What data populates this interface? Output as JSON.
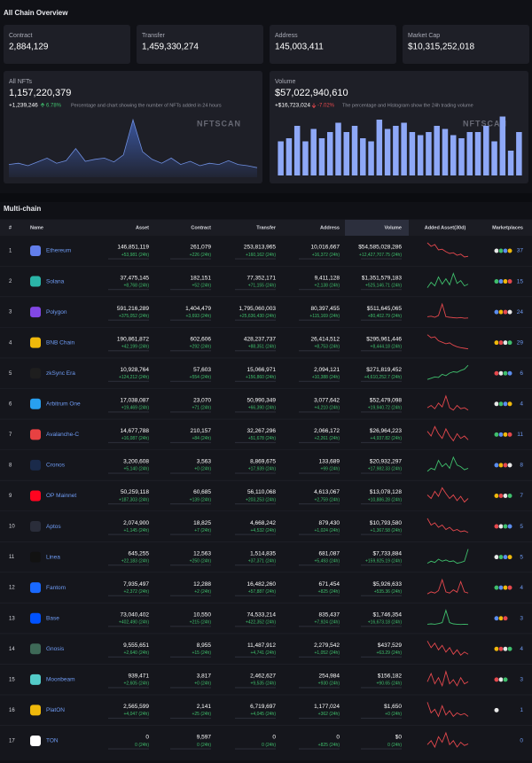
{
  "overview": {
    "title": "All Chain Overview",
    "stats": [
      {
        "label": "Contract",
        "value": "2,884,129"
      },
      {
        "label": "Transfer",
        "value": "1,459,330,274"
      },
      {
        "label": "Address",
        "value": "145,003,411"
      },
      {
        "label": "Market Cap",
        "value": "$10,315,252,018"
      }
    ],
    "nfts": {
      "label": "All NFTs",
      "value": "1,157,220,379",
      "change": "+1,239,246",
      "pct": "6.78%",
      "note": "Percentage and chart showing the number of NFTs added in 24 hours",
      "watermark": "NFTSCAN",
      "ylim": [
        0,
        100
      ],
      "color": "#3d5ba9",
      "series": [
        20,
        22,
        18,
        24,
        30,
        22,
        26,
        45,
        25,
        28,
        30,
        24,
        35,
        90,
        40,
        28,
        22,
        30,
        20,
        25,
        18,
        22,
        20,
        26,
        20,
        18,
        15
      ]
    },
    "volume": {
      "label": "Volume",
      "value": "$57,022,940,610",
      "change": "+$16,723,024",
      "pct": "-7.02%",
      "note": "The percentage and Histogram show the 24h trading volume",
      "watermark": "NFTSCAN",
      "ylim": [
        0,
        100
      ],
      "color": "#8ea8f7",
      "bars": [
        55,
        60,
        80,
        55,
        75,
        60,
        70,
        85,
        70,
        80,
        60,
        55,
        90,
        75,
        80,
        85,
        70,
        65,
        70,
        80,
        75,
        65,
        60,
        70,
        70,
        80,
        55,
        95,
        40,
        70
      ]
    }
  },
  "table": {
    "title": "Multi-chain",
    "headers": [
      "#",
      "Name",
      "Asset",
      "Contract",
      "Transfer",
      "Address",
      "Volume",
      "Added Asset(30d)",
      "Marketplaces"
    ],
    "rows": [
      {
        "rank": "1",
        "name": "Ethereum",
        "icon_color": "#627eea",
        "asset": "146,851,119",
        "asset_change": "+53,981 (24h)",
        "contract": "261,079",
        "contract_change": "+226 (24h)",
        "transfer": "253,813,965",
        "transfer_change": "+160,162 (24h)",
        "address": "10,016,667",
        "address_change": "+16,372 (24h)",
        "volume": "$54,585,028,286",
        "volume_change": "+12,427,707.75 (24h)",
        "spark_color": "#e5484d",
        "spark": [
          80,
          70,
          75,
          60,
          62,
          55,
          50,
          52,
          45,
          48,
          40,
          42
        ],
        "marketplaces": 37
      },
      {
        "rank": "2",
        "name": "Solana",
        "icon_color": "#2bb5a8",
        "asset": "37,475,145",
        "asset_change": "+8,768 (24h)",
        "contract": "182,151",
        "contract_change": "+52 (24h)",
        "transfer": "77,352,171",
        "transfer_change": "+71,155 (24h)",
        "address": "9,411,128",
        "address_change": "+2,138 (24h)",
        "volume": "$1,351,579,183",
        "volume_change": "+525,146.71 (24h)",
        "spark_color": "#3fbf6c",
        "spark": [
          30,
          45,
          35,
          60,
          40,
          55,
          38,
          70,
          42,
          50,
          35,
          40
        ],
        "marketplaces": 15
      },
      {
        "rank": "3",
        "name": "Polygon",
        "icon_color": "#8247e5",
        "asset": "591,216,289",
        "asset_change": "+375,052 (24h)",
        "contract": "1,404,479",
        "contract_change": "+3,693 (24h)",
        "transfer": "1,795,060,003",
        "transfer_change": "+25,636,430 (24h)",
        "address": "80,397,455",
        "address_change": "+115,169 (24h)",
        "volume": "$511,645,065",
        "volume_change": "+80,402.79 (24h)",
        "spark_color": "#e5484d",
        "spark": [
          40,
          42,
          38,
          45,
          90,
          40,
          38,
          36,
          35,
          37,
          34,
          35
        ],
        "marketplaces": 24
      },
      {
        "rank": "4",
        "name": "BNB Chain",
        "icon_color": "#f0b90b",
        "asset": "190,861,872",
        "asset_change": "+42,199 (24h)",
        "contract": "602,606",
        "contract_change": "+292 (24h)",
        "transfer": "428,237,737",
        "transfer_change": "+88,351 (24h)",
        "address": "26,414,512",
        "address_change": "+8,753 (24h)",
        "volume": "$295,961,446",
        "volume_change": "+8,444.18 (24h)",
        "spark_color": "#e5484d",
        "spark": [
          85,
          75,
          78,
          65,
          60,
          55,
          58,
          50,
          45,
          42,
          40,
          38
        ],
        "marketplaces": 29
      },
      {
        "rank": "5",
        "name": "zkSync Era",
        "icon_color": "#1e1e1e",
        "asset": "10,928,764",
        "asset_change": "+124,212 (24h)",
        "contract": "57,603",
        "contract_change": "+554 (24h)",
        "transfer": "15,066,971",
        "transfer_change": "+156,860 (24h)",
        "address": "2,094,121",
        "address_change": "+10,388 (24h)",
        "volume": "$271,819,452",
        "volume_change": "+4,610,252.7 (24h)",
        "spark_color": "#3fbf6c",
        "spark": [
          30,
          35,
          40,
          38,
          50,
          45,
          55,
          60,
          58,
          65,
          70,
          85
        ],
        "marketplaces": 6
      },
      {
        "rank": "6",
        "name": "Arbitrum One",
        "icon_color": "#28a0f0",
        "asset": "17,038,087",
        "asset_change": "+19,469 (24h)",
        "contract": "23,070",
        "contract_change": "+71 (24h)",
        "transfer": "50,990,349",
        "transfer_change": "+66,390 (24h)",
        "address": "3,077,642",
        "address_change": "+4,210 (24h)",
        "volume": "$52,479,098",
        "volume_change": "+19,940.72 (24h)",
        "spark_color": "#e5484d",
        "spark": [
          50,
          55,
          48,
          60,
          52,
          75,
          50,
          45,
          55,
          48,
          50,
          45
        ],
        "marketplaces": 4
      },
      {
        "rank": "7",
        "name": "Avalanche-C",
        "icon_color": "#e84142",
        "asset": "14,677,788",
        "asset_change": "+16,087 (24h)",
        "contract": "210,157",
        "contract_change": "+84 (24h)",
        "transfer": "32,267,296",
        "transfer_change": "+51,678 (24h)",
        "address": "2,066,172",
        "address_change": "+2,261 (24h)",
        "volume": "$26,964,223",
        "volume_change": "+4,937.82 (24h)",
        "spark_color": "#e5484d",
        "spark": [
          60,
          50,
          70,
          55,
          45,
          65,
          50,
          40,
          55,
          45,
          50,
          42
        ],
        "marketplaces": 11
      },
      {
        "rank": "8",
        "name": "Cronos",
        "icon_color": "#1a2a4a",
        "asset": "3,200,608",
        "asset_change": "+5,140 (24h)",
        "contract": "3,563",
        "contract_change": "+0 (24h)",
        "transfer": "8,869,675",
        "transfer_change": "+17,939 (24h)",
        "address": "133,689",
        "address_change": "+99 (24h)",
        "volume": "$20,932,297",
        "volume_change": "+17,982.33 (24h)",
        "spark_color": "#3fbf6c",
        "spark": [
          35,
          45,
          40,
          70,
          50,
          60,
          45,
          80,
          55,
          50,
          40,
          45
        ],
        "marketplaces": 8
      },
      {
        "rank": "9",
        "name": "OP Mainnet",
        "icon_color": "#ff0420",
        "asset": "50,259,118",
        "asset_change": "+187,303 (24h)",
        "contract": "60,685",
        "contract_change": "+139 (24h)",
        "transfer": "56,110,068",
        "transfer_change": "+203,253 (24h)",
        "address": "4,613,067",
        "address_change": "+2,759 (24h)",
        "volume": "$13,078,128",
        "volume_change": "+10,886.28 (24h)",
        "spark_color": "#e5484d",
        "spark": [
          50,
          45,
          55,
          48,
          60,
          52,
          45,
          50,
          42,
          48,
          40,
          45
        ],
        "marketplaces": 7
      },
      {
        "rank": "10",
        "name": "Aptos",
        "icon_color": "#2a2d3a",
        "asset": "2,074,900",
        "asset_change": "+1,145 (24h)",
        "contract": "18,825",
        "contract_change": "+7 (24h)",
        "transfer": "4,668,242",
        "transfer_change": "+4,532 (24h)",
        "address": "879,430",
        "address_change": "+1,024 (24h)",
        "volume": "$10,793,580",
        "volume_change": "+1,367.58 (24h)",
        "spark_color": "#e5484d",
        "spark": [
          70,
          55,
          60,
          50,
          55,
          45,
          50,
          42,
          45,
          40,
          42,
          38
        ],
        "marketplaces": 5
      },
      {
        "rank": "11",
        "name": "Linea",
        "icon_color": "#121212",
        "asset": "645,255",
        "asset_change": "+22,183 (24h)",
        "contract": "12,563",
        "contract_change": "+250 (24h)",
        "transfer": "1,514,835",
        "transfer_change": "+37,371 (24h)",
        "address": "681,087",
        "address_change": "+5,493 (24h)",
        "volume": "$7,733,884",
        "volume_change": "+159,925.19 (24h)",
        "spark_color": "#3fbf6c",
        "spark": [
          40,
          45,
          42,
          50,
          45,
          48,
          44,
          46,
          40,
          42,
          45,
          75
        ],
        "marketplaces": 5
      },
      {
        "rank": "12",
        "name": "Fantom",
        "icon_color": "#1969ff",
        "asset": "7,935,497",
        "asset_change": "+2,372 (24h)",
        "contract": "12,288",
        "contract_change": "+2 (24h)",
        "transfer": "16,482,260",
        "transfer_change": "+57,887 (24h)",
        "address": "671,454",
        "address_change": "+825 (24h)",
        "volume": "$5,926,633",
        "volume_change": "+535.36 (24h)",
        "spark_color": "#e5484d",
        "spark": [
          40,
          45,
          42,
          48,
          75,
          45,
          42,
          50,
          44,
          70,
          45,
          42
        ],
        "marketplaces": 4
      },
      {
        "rank": "13",
        "name": "Base",
        "icon_color": "#0052ff",
        "asset": "73,040,402",
        "asset_change": "+402,490 (24h)",
        "contract": "10,550",
        "contract_change": "+215 (24h)",
        "transfer": "74,533,214",
        "transfer_change": "+422,352 (24h)",
        "address": "835,437",
        "address_change": "+7,924 (24h)",
        "volume": "$1,746,354",
        "volume_change": "+16,673.18 (24h)",
        "spark_color": "#3fbf6c",
        "spark": [
          35,
          36,
          35,
          37,
          40,
          80,
          40,
          36,
          35,
          34,
          35,
          34
        ],
        "marketplaces": 3
      },
      {
        "rank": "14",
        "name": "Gnosis",
        "icon_color": "#3e6957",
        "asset": "9,555,651",
        "asset_change": "+2,640 (24h)",
        "contract": "8,955",
        "contract_change": "+15 (24h)",
        "transfer": "11,487,912",
        "transfer_change": "+4,741 (24h)",
        "address": "2,279,542",
        "address_change": "+1,052 (24h)",
        "volume": "$437,529",
        "volume_change": "+63.29 (24h)",
        "spark_color": "#e5484d",
        "spark": [
          70,
          55,
          65,
          50,
          60,
          45,
          55,
          40,
          50,
          38,
          45,
          40
        ],
        "marketplaces": 4
      },
      {
        "rank": "15",
        "name": "Moonbeam",
        "icon_color": "#53cbc8",
        "asset": "939,471",
        "asset_change": "+2,605 (24h)",
        "contract": "3,817",
        "contract_change": "+0 (24h)",
        "transfer": "2,462,627",
        "transfer_change": "+9,535 (24h)",
        "address": "254,984",
        "address_change": "+930 (24h)",
        "volume": "$156,182",
        "volume_change": "+90.65 (24h)",
        "spark_color": "#e5484d",
        "spark": [
          50,
          70,
          45,
          60,
          40,
          75,
          45,
          55,
          40,
          60,
          45,
          50
        ],
        "marketplaces": 3
      },
      {
        "rank": "16",
        "name": "PlatON",
        "icon_color": "#f0b90b",
        "asset": "2,565,599",
        "asset_change": "+4,047 (24h)",
        "contract": "2,141",
        "contract_change": "+25 (24h)",
        "transfer": "6,719,697",
        "transfer_change": "+4,045 (24h)",
        "address": "1,177,024",
        "address_change": "+362 (24h)",
        "volume": "$1,650",
        "volume_change": "+0 (24h)",
        "spark_color": "#e5484d",
        "spark": [
          60,
          45,
          50,
          40,
          55,
          42,
          48,
          40,
          45,
          42,
          44,
          40
        ],
        "marketplaces": 1
      },
      {
        "rank": "17",
        "name": "TON",
        "icon_color": "#ffffff",
        "asset": "0",
        "asset_change": "0 (24h)",
        "contract": "9,597",
        "contract_change": "0 (24h)",
        "transfer": "0",
        "transfer_change": "0 (24h)",
        "address": "0",
        "address_change": "+825 (24h)",
        "volume": "$0",
        "volume_change": "0 (24h)",
        "spark_color": "#e5484d",
        "spark": [
          45,
          50,
          42,
          55,
          48,
          60,
          45,
          50,
          42,
          48,
          44,
          46
        ],
        "marketplaces": 0
      }
    ]
  }
}
